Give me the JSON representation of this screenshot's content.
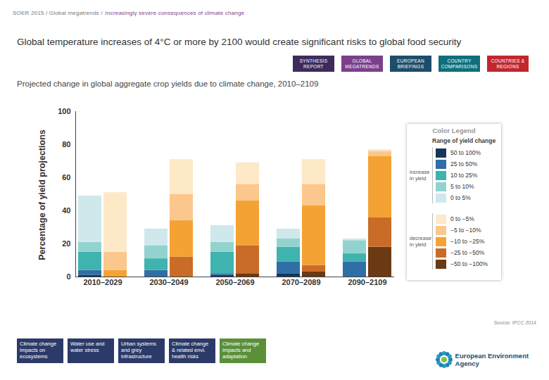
{
  "header": {
    "path": "SOER 2015 / Global megatrends /",
    "topic": "Increasingly severe consequences of climate change"
  },
  "headline": "Global temperature increases of 4°C or more by 2100 would create significant risks to global food security",
  "nav": [
    "SYNTHESIS REPORT",
    "GLOBAL MEGATRENDS",
    "EUROPEAN BRIEFINGS",
    "COUNTRY COMPARISONS",
    "COUNTRIES & REGIONS"
  ],
  "source": "Source: IPCC 2014",
  "footer_links": [
    "Climate change impacts on ecosystems",
    "Water use and water stress",
    "Urban systems and grey infrastructure",
    "Climate change & related envi. health risks",
    "Climate change impacts and adaptation"
  ],
  "logo": "European Environment Agency",
  "legend_box": {
    "title": "Color Legend",
    "subtitle": "Range of yield change"
  },
  "chart_data": {
    "type": "bar",
    "stacked": true,
    "legend": "right",
    "title": "Projected change in global aggregate crop yields due to climate change, 2010–2109",
    "ylabel": "Percentage of yield projections",
    "categories": [
      "2010–2029",
      "2030–2049",
      "2050–2069",
      "2070–2089",
      "2090–2109"
    ],
    "ylim": [
      0,
      100
    ],
    "yticks": [
      0,
      20,
      40,
      60,
      80,
      100
    ],
    "groups": [
      {
        "name": "increase in yield",
        "series": [
          {
            "name": "50 to 100%",
            "color": "#15365a",
            "values": [
              1,
              0,
              1,
              2,
              0
            ]
          },
          {
            "name": "25 to 50%",
            "color": "#2f6ea6",
            "values": [
              3,
              4,
              1,
              7,
              9
            ]
          },
          {
            "name": "10 to 25%",
            "color": "#3fb3ad",
            "values": [
              11,
              7,
              13,
              9,
              5
            ]
          },
          {
            "name": "5 to 10%",
            "color": "#93d3cf",
            "values": [
              6,
              8,
              6,
              5,
              8
            ]
          },
          {
            "name": "0 to 5%",
            "color": "#cfe8ec",
            "values": [
              28,
              10,
              10,
              6,
              1
            ]
          }
        ]
      },
      {
        "name": "decrease in yield",
        "series": [
          {
            "name": "0 to −5%",
            "color": "#fde8c8",
            "values": [
              36,
              21,
              13,
              15,
              1
            ]
          },
          {
            "name": "−5 to −10%",
            "color": "#fbc78c",
            "values": [
              11,
              16,
              10,
              13,
              3
            ]
          },
          {
            "name": "−10 to −25%",
            "color": "#f5a234",
            "values": [
              4,
              22,
              27,
              36,
              37
            ]
          },
          {
            "name": "−25 to −50%",
            "color": "#c96c28",
            "values": [
              0,
              12,
              17,
              4,
              18
            ]
          },
          {
            "name": "−50 to −100%",
            "color": "#6b3912",
            "values": [
              0,
              0,
              2,
              3,
              18
            ]
          }
        ]
      }
    ]
  }
}
